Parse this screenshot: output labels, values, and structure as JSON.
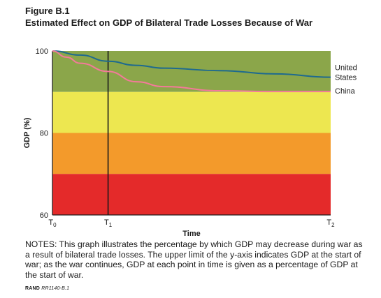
{
  "figure_label": "Figure B.1",
  "title": "Estimated Effect on GDP of Bilateral Trade Losses Because of War",
  "notes": "NOTES: This graph illustrates the percentage by which GDP may decrease during war as a result of bilateral trade losses. The upper limit of the y-axis indicates GDP at the start of war; as the war continues, GDP at each point in time is given as a percentage of GDP at the start of war.",
  "credit_prefix": "RAND",
  "credit_id": "RR1140-B.1",
  "chart_data": {
    "type": "line",
    "xlabel": "Time",
    "ylabel": "GDP (%)",
    "ylim": [
      60,
      100
    ],
    "yticks": [
      60,
      80,
      100
    ],
    "x_ticks": [
      {
        "base": "T",
        "sub": "0",
        "x": 0
      },
      {
        "base": "T",
        "sub": "1",
        "x": 1
      },
      {
        "base": "T",
        "sub": "2",
        "x": 5
      }
    ],
    "xlim": [
      0,
      5
    ],
    "vertical_line_at": 1,
    "bands": [
      {
        "from": 90,
        "to": 100,
        "color": "#8ba64a"
      },
      {
        "from": 80,
        "to": 90,
        "color": "#ede750"
      },
      {
        "from": 70,
        "to": 80,
        "color": "#f39a2b"
      },
      {
        "from": 60,
        "to": 70,
        "color": "#e42a2a"
      }
    ],
    "series": [
      {
        "name": "United States",
        "name_lines": [
          "United",
          "States"
        ],
        "color": "#1e6a8f",
        "x": [
          0,
          0.5,
          1,
          1.5,
          2,
          3,
          4,
          5
        ],
        "values": [
          100,
          99,
          97.5,
          96.5,
          95.8,
          95.2,
          94.4,
          93.6
        ]
      },
      {
        "name": "China",
        "name_lines": [
          "China"
        ],
        "color": "#f47a9a",
        "x": [
          0,
          0.25,
          0.5,
          1,
          1.5,
          2,
          3,
          4,
          5
        ],
        "values": [
          100,
          98.5,
          97,
          95,
          92.5,
          91.3,
          90.3,
          90.1,
          90.1
        ]
      }
    ]
  }
}
